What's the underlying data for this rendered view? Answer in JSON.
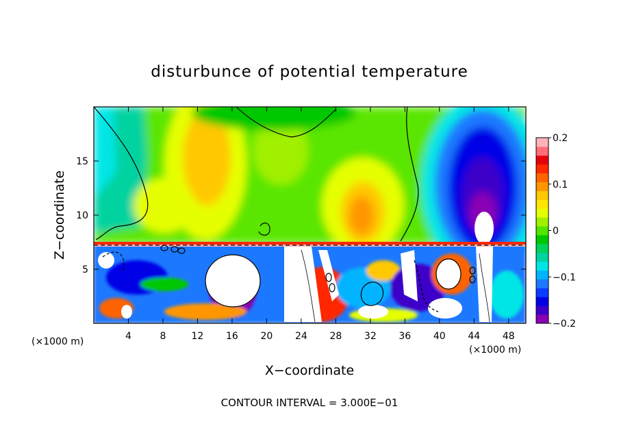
{
  "chart_data": {
    "type": "heatmap",
    "title": "disturbunce of potential temperature",
    "xlabel": "X−coordinate",
    "ylabel": "Z−coordinate",
    "x_unit": "(×1000 m)",
    "z_unit": "(×1000 m)",
    "xlim": [
      0,
      50
    ],
    "ylim": [
      0,
      20
    ],
    "x_ticks": [
      4,
      8,
      12,
      16,
      20,
      24,
      28,
      32,
      36,
      40,
      44,
      48
    ],
    "y_ticks": [
      5,
      10,
      15
    ],
    "colorbar": {
      "range": [
        -0.2,
        0.2
      ],
      "tick_labels": [
        "0.2",
        "0.1",
        "0",
        "−0.1",
        "−0.2"
      ],
      "tick_values": [
        0.2,
        0.1,
        0,
        -0.1,
        -0.2
      ],
      "colors": [
        "#8a00b4",
        "#3c00c8",
        "#0000e6",
        "#0a3cff",
        "#1e78ff",
        "#00b4ff",
        "#00e6e6",
        "#00d2a0",
        "#00d25a",
        "#00c800",
        "#50e600",
        "#a0f000",
        "#e6ff00",
        "#ffe600",
        "#ffc800",
        "#ff9600",
        "#ff6400",
        "#ff2800",
        "#e6000a",
        "#ff6e78",
        "#ffb4b9"
      ]
    },
    "contour_interval_label": "CONTOUR INTERVAL = 3.000E−01",
    "grid": false
  }
}
